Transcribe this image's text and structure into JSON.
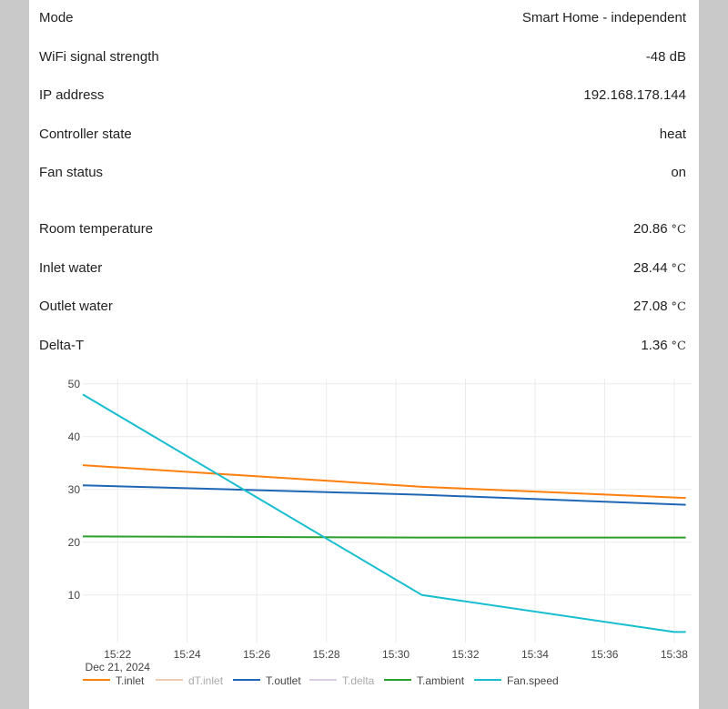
{
  "status_rows": [
    {
      "label": "Mode",
      "value": "Smart Home - independent",
      "unit": ""
    },
    {
      "label": "WiFi signal strength",
      "value": "-48 dB",
      "unit": ""
    },
    {
      "label": "IP address",
      "value": "192.168.178.144",
      "unit": ""
    },
    {
      "label": "Controller state",
      "value": "heat",
      "unit": ""
    },
    {
      "label": "Fan status",
      "value": "on",
      "unit": ""
    }
  ],
  "measurement_rows": [
    {
      "label": "Room temperature",
      "value": "20.86",
      "unit": "°C"
    },
    {
      "label": "Inlet water",
      "value": "28.44",
      "unit": "°C"
    },
    {
      "label": "Outlet water",
      "value": "27.08",
      "unit": "°C"
    },
    {
      "label": "Delta-T",
      "value": "1.36",
      "unit": "°C"
    }
  ],
  "colors": {
    "T.inlet": "#ff7f0e",
    "dT.inlet": "#e3a982",
    "T.outlet": "#1f67b4",
    "T.delta": "#c5b0d5",
    "T.ambient": "#2ca02c",
    "Fan.speed": "#17becf",
    "grid": "#ebebeb",
    "axis_text": "#444444"
  },
  "chart_data": {
    "type": "line",
    "title": "",
    "xlabel": "",
    "ylabel": "",
    "x_date_label": "Dec 21, 2024",
    "xlim": [
      "15:21",
      "15:38:30"
    ],
    "ylim": [
      1,
      51
    ],
    "xticks": [
      "15:22",
      "15:24",
      "15:26",
      "15:28",
      "15:30",
      "15:32",
      "15:34",
      "15:36",
      "15:38"
    ],
    "yticks": [
      10,
      20,
      30,
      40,
      50
    ],
    "grid": true,
    "legend_position": "bottom",
    "series": [
      {
        "name": "T.inlet",
        "visible": true,
        "x": [
          "15:21",
          "15:30:45",
          "15:38:20"
        ],
        "y": [
          34.6,
          30.5,
          28.4
        ]
      },
      {
        "name": "dT.inlet",
        "visible": false,
        "x": [],
        "y": []
      },
      {
        "name": "T.outlet",
        "visible": true,
        "x": [
          "15:21",
          "15:30:45",
          "15:38:20"
        ],
        "y": [
          30.8,
          29.0,
          27.1
        ]
      },
      {
        "name": "T.delta",
        "visible": false,
        "x": [],
        "y": []
      },
      {
        "name": "T.ambient",
        "visible": true,
        "x": [
          "15:21",
          "15:30:45",
          "15:38:20"
        ],
        "y": [
          21.1,
          20.9,
          20.9
        ]
      },
      {
        "name": "Fan.speed",
        "visible": true,
        "x": [
          "15:21",
          "15:30:45",
          "15:38",
          "15:38:20"
        ],
        "y": [
          48,
          10,
          3,
          3
        ]
      }
    ]
  }
}
